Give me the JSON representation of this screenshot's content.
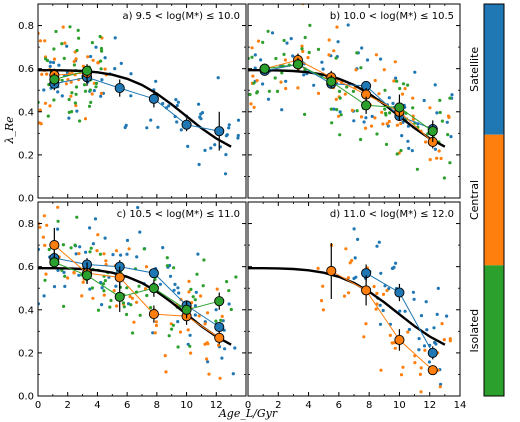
{
  "figure": {
    "xlabel": "Age_L/Gyr",
    "ylabel": "λ_Re"
  },
  "colors": {
    "satellite": "#1f77b4",
    "central": "#ff7f0e",
    "isolated": "#2ca02c",
    "model": "#000000"
  },
  "colorbar": {
    "labels": [
      "Satellite",
      "Central",
      "Isolated"
    ]
  },
  "chart_data": [
    {
      "type": "scatter",
      "title": "a) 9.5 < log(M*) ≤ 10.0",
      "xlim": [
        0,
        14
      ],
      "ylim": [
        0,
        0.9
      ],
      "xticks": [
        0,
        2,
        4,
        6,
        8,
        10,
        12,
        14
      ],
      "yticks": [
        0.0,
        0.2,
        0.4,
        0.6,
        0.8
      ],
      "model_curve": {
        "x": [
          0,
          1,
          2,
          3,
          4,
          5,
          6,
          7,
          8,
          9,
          10,
          11,
          12,
          13
        ],
        "y": [
          0.593,
          0.593,
          0.592,
          0.589,
          0.583,
          0.572,
          0.553,
          0.524,
          0.484,
          0.434,
          0.379,
          0.324,
          0.276,
          0.238
        ]
      },
      "series": [
        {
          "name": "Satellite",
          "x": [
            1.1,
            3.3,
            5.5,
            7.8,
            10.0,
            12.2
          ],
          "y": [
            0.53,
            0.56,
            0.51,
            0.46,
            0.34,
            0.31
          ],
          "yerr": [
            0.03,
            0.04,
            0.04,
            0.04,
            0.03,
            0.09
          ]
        },
        {
          "name": "Central",
          "x": [
            1.1,
            3.3
          ],
          "y": [
            0.57,
            0.58
          ],
          "yerr": [
            0.03,
            0.04
          ]
        },
        {
          "name": "Isolated",
          "x": [
            1.1,
            3.3
          ],
          "y": [
            0.55,
            0.59
          ],
          "yerr": [
            0.03,
            0.03
          ]
        }
      ]
    },
    {
      "type": "scatter",
      "title": "b) 10.0 < log(M*) ≤ 10.5",
      "xlim": [
        0,
        14
      ],
      "ylim": [
        0,
        0.9
      ],
      "xticks": [
        0,
        2,
        4,
        6,
        8,
        10,
        12,
        14
      ],
      "yticks": [
        0.0,
        0.2,
        0.4,
        0.6,
        0.8
      ],
      "model_curve": {
        "x": [
          0,
          1,
          2,
          3,
          4,
          5,
          6,
          7,
          8,
          9,
          10,
          11,
          12,
          13
        ],
        "y": [
          0.593,
          0.593,
          0.592,
          0.589,
          0.583,
          0.572,
          0.553,
          0.524,
          0.484,
          0.434,
          0.379,
          0.324,
          0.276,
          0.238
        ]
      },
      "series": [
        {
          "name": "Satellite",
          "x": [
            1.1,
            3.3,
            5.5,
            7.8,
            10.0,
            12.2
          ],
          "y": [
            0.59,
            0.62,
            0.53,
            0.52,
            0.38,
            0.32
          ],
          "yerr": [
            0.02,
            0.02,
            0.02,
            0.02,
            0.02,
            0.02
          ]
        },
        {
          "name": "Central",
          "x": [
            1.1,
            3.3,
            5.5,
            7.8,
            10.0,
            12.2
          ],
          "y": [
            0.6,
            0.64,
            0.56,
            0.48,
            0.4,
            0.26
          ],
          "yerr": [
            0.02,
            0.03,
            0.03,
            0.03,
            0.04,
            0.03
          ]
        },
        {
          "name": "Isolated",
          "x": [
            1.1,
            3.3,
            5.5,
            7.8,
            10.0,
            12.2
          ],
          "y": [
            0.6,
            0.62,
            0.54,
            0.43,
            0.42,
            0.31
          ],
          "yerr": [
            0.02,
            0.03,
            0.03,
            0.04,
            0.06,
            0.05
          ]
        }
      ]
    },
    {
      "type": "scatter",
      "title": "c) 10.5 < log(M*) ≤ 11.0",
      "xlim": [
        0,
        14
      ],
      "ylim": [
        0,
        0.9
      ],
      "xticks": [
        0,
        2,
        4,
        6,
        8,
        10,
        12,
        14
      ],
      "yticks": [
        0.0,
        0.2,
        0.4,
        0.6,
        0.8
      ],
      "model_curve": {
        "x": [
          0,
          1,
          2,
          3,
          4,
          5,
          6,
          7,
          8,
          9,
          10,
          11,
          12,
          13
        ],
        "y": [
          0.593,
          0.593,
          0.592,
          0.589,
          0.583,
          0.572,
          0.553,
          0.524,
          0.484,
          0.434,
          0.379,
          0.324,
          0.276,
          0.238
        ]
      },
      "series": [
        {
          "name": "Satellite",
          "x": [
            1.1,
            3.3,
            5.5,
            7.8,
            10.0,
            12.2
          ],
          "y": [
            0.64,
            0.61,
            0.6,
            0.57,
            0.42,
            0.32
          ],
          "yerr": [
            0.04,
            0.03,
            0.03,
            0.02,
            0.02,
            0.02
          ]
        },
        {
          "name": "Central",
          "x": [
            1.1,
            3.3,
            5.5,
            7.8,
            10.0,
            12.2
          ],
          "y": [
            0.7,
            0.57,
            0.55,
            0.38,
            0.37,
            0.27
          ],
          "yerr": [
            0.08,
            0.05,
            0.05,
            0.04,
            0.04,
            0.03
          ]
        },
        {
          "name": "Isolated",
          "x": [
            1.1,
            3.3,
            5.5,
            7.8,
            10.0,
            12.2
          ],
          "y": [
            0.62,
            0.56,
            0.46,
            0.5,
            0.4,
            0.44
          ],
          "yerr": [
            0.03,
            0.04,
            0.07,
            0.04,
            0.04,
            0.04
          ]
        }
      ]
    },
    {
      "type": "scatter",
      "title": "d) 11.0 < log(M*) ≤ 12.0",
      "xlim": [
        0,
        14
      ],
      "ylim": [
        0,
        0.9
      ],
      "xticks": [
        0,
        2,
        4,
        6,
        8,
        10,
        12,
        14
      ],
      "yticks": [
        0.0,
        0.2,
        0.4,
        0.6,
        0.8
      ],
      "model_curve": {
        "x": [
          0,
          1,
          2,
          3,
          4,
          5,
          6,
          7,
          8,
          9,
          10,
          11,
          12,
          13
        ],
        "y": [
          0.593,
          0.593,
          0.592,
          0.589,
          0.583,
          0.572,
          0.553,
          0.524,
          0.484,
          0.434,
          0.379,
          0.324,
          0.276,
          0.238
        ]
      },
      "series": [
        {
          "name": "Satellite",
          "x": [
            7.8,
            10.0,
            12.2
          ],
          "y": [
            0.57,
            0.48,
            0.2
          ],
          "yerr": [
            0.04,
            0.04,
            0.03
          ]
        },
        {
          "name": "Central",
          "x": [
            5.5,
            7.8,
            10.0,
            12.2
          ],
          "y": [
            0.58,
            0.49,
            0.26,
            0.12
          ],
          "yerr": [
            0.13,
            0.07,
            0.05,
            0.02
          ]
        }
      ]
    }
  ]
}
